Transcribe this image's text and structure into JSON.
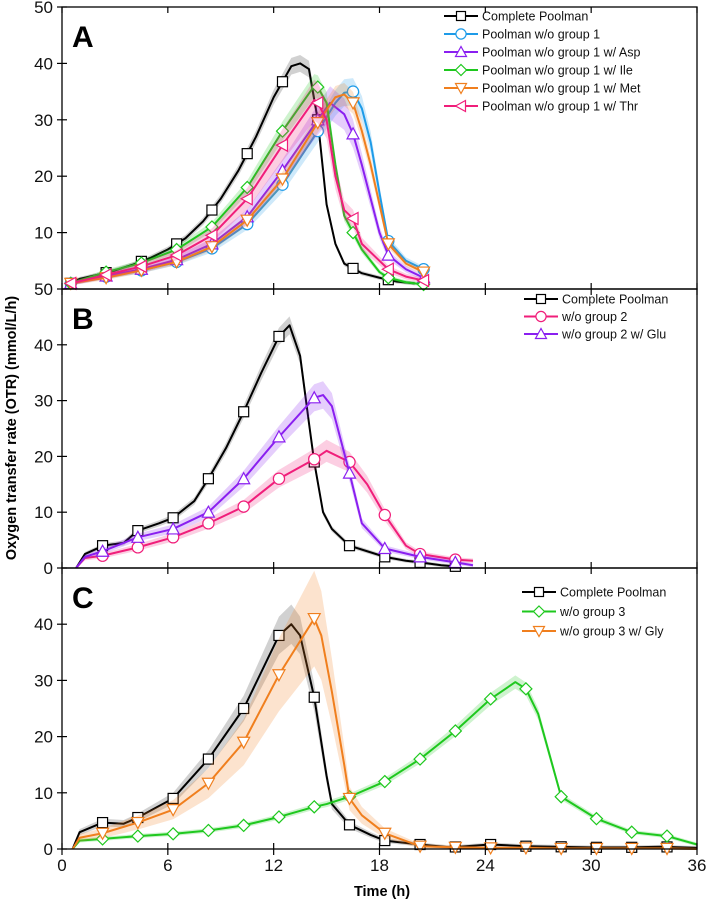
{
  "figure": {
    "ylabel": "Oxygen transfer rate (OTR)   (mmol/L/h)",
    "xlabel": "Time   (h)"
  },
  "colors": {
    "complete": "#000000",
    "blue": "#1e9be8",
    "purple": "#8a1ff0",
    "green": "#1ec81e",
    "orange": "#f07f1e",
    "pink": "#f01e7a"
  },
  "chart_data": [
    {
      "type": "line",
      "panel_label": "A",
      "xlim": [
        0,
        36
      ],
      "ylim": [
        0,
        50
      ],
      "xticks": [
        0,
        6,
        12,
        18,
        24,
        30,
        36
      ],
      "yticks": [
        10,
        20,
        30,
        40,
        50
      ],
      "ytick_labels": [
        "10",
        "20",
        "30",
        "40",
        "50"
      ],
      "legend": "top-right",
      "marker_times": [
        0.5,
        2.5,
        4.5,
        6.5,
        8.5,
        10.5,
        12.5,
        14.5,
        16.5,
        18.5,
        20.5
      ],
      "series": [
        {
          "name": "Complete Poolman",
          "color": "#000000",
          "marker": "square",
          "band": 0.03,
          "x": [
            0.5,
            1,
            2,
            3,
            4,
            5,
            6,
            7,
            8,
            9,
            10,
            11,
            12,
            13,
            13.5,
            14,
            14.5,
            15,
            15.5,
            16,
            17,
            18,
            19,
            20
          ],
          "y": [
            1,
            1.8,
            2.5,
            3.3,
            4.3,
            5.5,
            7,
            9,
            12,
            16,
            21,
            27,
            34,
            39.5,
            40,
            39,
            30,
            15,
            8,
            4.5,
            2.8,
            2,
            1.3,
            1
          ]
        },
        {
          "name": "Poolman w/o group 1",
          "color": "#1e9be8",
          "marker": "circle",
          "band": 0.06,
          "x": [
            0.5,
            2.5,
            4.5,
            6.5,
            8.5,
            10.5,
            12.5,
            14.5,
            15.5,
            16,
            16.5,
            17,
            17.5,
            18,
            18.5,
            19.5,
            20.5
          ],
          "y": [
            1,
            2.2,
            3.3,
            4.8,
            7.2,
            11.5,
            18.5,
            28,
            33,
            34.8,
            35,
            32,
            26,
            17,
            8.5,
            5,
            3.5
          ]
        },
        {
          "name": "Poolman w/o group 1 w/ Asp",
          "color": "#8a1ff0",
          "marker": "triangle-up",
          "band": 0.08,
          "x": [
            0.5,
            2.5,
            4.5,
            6.5,
            8.5,
            10.5,
            12.5,
            14.5,
            15.2,
            16,
            16.5,
            17,
            17.5,
            18,
            18.5,
            19.5,
            20.5
          ],
          "y": [
            1,
            2.3,
            3.5,
            5.2,
            8,
            12.8,
            21,
            30,
            33,
            31,
            27.5,
            22,
            16,
            10,
            6,
            3.5,
            2
          ]
        },
        {
          "name": "Poolman w/o group 1 w/ Ile",
          "color": "#1ec81e",
          "marker": "diamond",
          "band": 0.05,
          "x": [
            0.5,
            2.5,
            4.5,
            6.5,
            8.5,
            10.5,
            12.5,
            14.3,
            14.5,
            15,
            15.5,
            16,
            16.5,
            17,
            18,
            18.5,
            19.5,
            20.5
          ],
          "y": [
            1,
            3,
            4.6,
            7,
            11,
            18,
            28,
            36,
            35.8,
            33,
            22,
            13,
            10,
            7,
            3,
            2,
            1.2,
            0.8
          ]
        },
        {
          "name": "Poolman w/o group 1 w/ Met",
          "color": "#f07f1e",
          "marker": "triangle-down",
          "band": 0.05,
          "x": [
            0.5,
            2.5,
            4.5,
            6.5,
            8.5,
            10.5,
            12.5,
            14.5,
            15.5,
            16,
            16.5,
            17,
            17.5,
            18,
            18.5,
            19.5,
            20.5
          ],
          "y": [
            1,
            2,
            3.3,
            4.8,
            7.5,
            12.2,
            19.5,
            29.5,
            34,
            34.5,
            33,
            28,
            22,
            15,
            8,
            4.5,
            3
          ]
        },
        {
          "name": "Poolman w/o group 1 w/ Thr",
          "color": "#f01e7a",
          "marker": "triangle-left",
          "band": 0.1,
          "x": [
            0.5,
            2.5,
            4.5,
            6.5,
            8.5,
            10.5,
            12.5,
            14.3,
            14.5,
            15,
            15.5,
            16,
            16.5,
            17,
            18,
            18.5,
            19.5,
            20.5
          ],
          "y": [
            1,
            2.5,
            4,
            6,
            9.5,
            16,
            25.5,
            33.5,
            33,
            30,
            20,
            14,
            12.5,
            8,
            5,
            3.5,
            2.2,
            1.5
          ]
        }
      ]
    },
    {
      "type": "line",
      "panel_label": "B",
      "xlim": [
        0,
        36
      ],
      "ylim": [
        0,
        50
      ],
      "xticks": [
        0,
        6,
        12,
        18,
        24,
        30,
        36
      ],
      "yticks": [
        0,
        10,
        20,
        30,
        40,
        50
      ],
      "ytick_labels": [
        "0",
        "10",
        "20",
        "30",
        "40",
        "50"
      ],
      "legend": "top-right",
      "marker_times": [
        2.3,
        4.3,
        6.3,
        8.3,
        10.3,
        12.3,
        14.3,
        16.3,
        18.3,
        20.3,
        22.3
      ],
      "series": [
        {
          "name": "Complete Poolman",
          "color": "#000000",
          "marker": "square",
          "band": 0.03,
          "x": [
            0.8,
            1.3,
            2,
            2.3,
            3.5,
            4.3,
            5.5,
            6.3,
            7.5,
            8.3,
            9.3,
            10.3,
            11.3,
            12.3,
            12.9,
            13.5,
            14,
            14.3,
            14.8,
            15.3,
            16.3,
            17.3,
            18.3,
            19.5,
            20.3,
            21.5,
            22.3
          ],
          "y": [
            0,
            2.5,
            3.5,
            4,
            4.5,
            6.7,
            8,
            9,
            12,
            16,
            21.5,
            28,
            35,
            41.5,
            43.5,
            38,
            26,
            19,
            10,
            7,
            4,
            3,
            2,
            1.3,
            1,
            0.5,
            0.3
          ]
        },
        {
          "name": "w/o group 2",
          "color": "#f01e7a",
          "marker": "circle",
          "band": 0.08,
          "x": [
            0.8,
            1.3,
            2.3,
            4.3,
            6.3,
            8.3,
            10.3,
            12.3,
            14.3,
            15,
            16.3,
            17.3,
            18.3,
            19.5,
            20.3,
            22.3,
            23.3
          ],
          "y": [
            0,
            1.8,
            2.2,
            3.7,
            5.5,
            8,
            11,
            16,
            19.5,
            21,
            19,
            15,
            9.5,
            4,
            2.5,
            1.5,
            1.3
          ]
        },
        {
          "name": "w/o group 2 w/ Glu",
          "color": "#8a1ff0",
          "marker": "triangle-up",
          "band": 0.07,
          "x": [
            0.8,
            1.3,
            2.3,
            4.3,
            6.3,
            8.3,
            10.3,
            12.3,
            14.3,
            14.8,
            15.3,
            16.3,
            17,
            18.3,
            20.3,
            22.3,
            23.3
          ],
          "y": [
            0,
            2,
            3,
            5.5,
            7,
            10,
            16,
            23.5,
            30.5,
            31,
            29,
            17,
            8,
            3.5,
            2,
            1,
            0.5
          ]
        }
      ]
    },
    {
      "type": "line",
      "panel_label": "C",
      "xlim": [
        0,
        36
      ],
      "ylim": [
        0,
        50
      ],
      "xticks": [
        0,
        6,
        12,
        18,
        24,
        30,
        36
      ],
      "xtick_labels": [
        "0",
        "6",
        "12",
        "18",
        "24",
        "30",
        "36"
      ],
      "yticks": [
        0,
        10,
        20,
        30,
        40
      ],
      "ytick_labels": [
        "0",
        "10",
        "20",
        "30",
        "40"
      ],
      "legend": "top-right",
      "marker_times": [
        2.3,
        4.3,
        6.3,
        8.3,
        10.3,
        12.3,
        14.3,
        16.3,
        18.3,
        20.3,
        22.3,
        24.3,
        26.3,
        28.3,
        30.3,
        32.3,
        34.3
      ],
      "series": [
        {
          "name": "Complete Poolman",
          "color": "#000000",
          "marker": "square",
          "band": 0.08,
          "x": [
            0.6,
            1,
            2.3,
            3.5,
            4.3,
            6.3,
            8.3,
            10.3,
            12.3,
            13,
            13.5,
            14.3,
            15,
            15.3,
            16.3,
            17.5,
            18.3,
            20.3,
            22,
            24.3,
            26.3,
            30,
            32.3,
            34,
            36
          ],
          "y": [
            0,
            3,
            4.7,
            4.5,
            5.6,
            9,
            16,
            25,
            38,
            40,
            38,
            27,
            13,
            8,
            4.3,
            2.5,
            1.5,
            0.8,
            0.3,
            0.8,
            0.5,
            0.3,
            0.3,
            0.4,
            0.2
          ]
        },
        {
          "name": "w/o group 3",
          "color": "#1ec81e",
          "marker": "diamond",
          "band": 0.03,
          "x": [
            0.6,
            1,
            2.3,
            4.3,
            6.3,
            8.3,
            10.3,
            12.3,
            14.3,
            15,
            16.3,
            18.3,
            20.3,
            22.3,
            24.3,
            25.7,
            26.3,
            27,
            28.3,
            30.3,
            32.3,
            34.3,
            36
          ],
          "y": [
            0,
            1.5,
            1.8,
            2.3,
            2.7,
            3.3,
            4.2,
            5.7,
            7.5,
            8,
            9.3,
            12,
            16,
            21,
            26.7,
            29.7,
            28.5,
            24,
            9.3,
            5.4,
            3,
            2.3,
            0.8
          ]
        },
        {
          "name": "w/o group 3 w/ Gly",
          "color": "#f07f1e",
          "marker": "triangle-down",
          "band": 0.2,
          "x": [
            0.6,
            1,
            2.3,
            4.3,
            6.3,
            8.3,
            10.3,
            12.3,
            14.3,
            14.7,
            15.3,
            16,
            16.3,
            17,
            18.3,
            20.3,
            22.3,
            24.3,
            26.3,
            28.3,
            30.3,
            32.3,
            34.3,
            36
          ],
          "y": [
            0,
            2,
            2.8,
            4.7,
            7,
            11.7,
            19,
            31,
            41,
            38,
            28,
            15,
            9,
            6,
            2.8,
            0.5,
            0.3,
            0.2,
            0.2,
            0.1,
            0.1,
            0.1,
            0.1,
            0
          ]
        }
      ]
    }
  ]
}
